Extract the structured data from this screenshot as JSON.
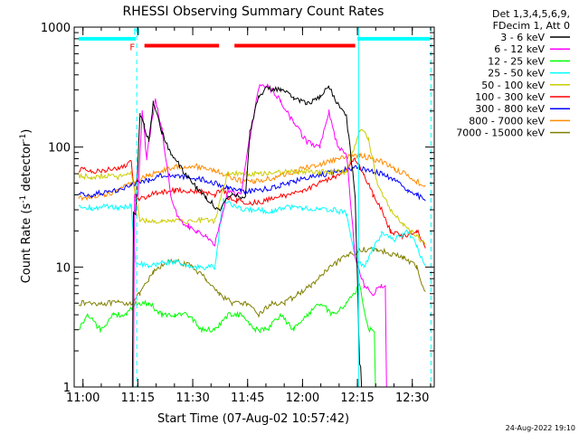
{
  "chart_data": {
    "type": "line",
    "title": "RHESSI Observing Summary Count Rates",
    "xlabel": "Start Time (07-Aug-02 10:57:42)",
    "ylabel": "Count Rate (s⁻¹ detector⁻¹)",
    "ylabel_parts": [
      "Count Rate (s",
      "-1",
      " detector",
      "-1",
      ")"
    ],
    "yscale": "log",
    "ylim": [
      1,
      1000
    ],
    "xlim": [
      10.96,
      12.6
    ],
    "xlim_labels": [
      "10:57:42",
      "12:36:00"
    ],
    "xticks": [
      {
        "v": 11.0,
        "label": "11:00"
      },
      {
        "v": 11.25,
        "label": "11:15"
      },
      {
        "v": 11.5,
        "label": "11:30"
      },
      {
        "v": 11.75,
        "label": "11:45"
      },
      {
        "v": 12.0,
        "label": "12:00"
      },
      {
        "v": 12.25,
        "label": "12:15"
      },
      {
        "v": 12.5,
        "label": "12:30"
      }
    ],
    "yticks": [
      {
        "v": 1,
        "label": "1"
      },
      {
        "v": 10,
        "label": "10"
      },
      {
        "v": 100,
        "label": "100"
      },
      {
        "v": 1000,
        "label": "1000"
      }
    ],
    "legend_position": "right",
    "legend_header": [
      "Det 1,3,4,5,6,9,",
      "FDecim 1, Att 0"
    ],
    "series": [
      {
        "name": "3 - 6 keV",
        "color": "#000000",
        "points": [
          [
            11.22,
            0
          ],
          [
            11.24,
            28
          ],
          [
            11.26,
            190
          ],
          [
            11.28,
            150
          ],
          [
            11.3,
            110
          ],
          [
            11.32,
            240
          ],
          [
            11.36,
            130
          ],
          [
            11.4,
            90
          ],
          [
            11.44,
            70
          ],
          [
            11.48,
            55
          ],
          [
            11.52,
            45
          ],
          [
            11.56,
            38
          ],
          [
            11.62,
            30
          ],
          [
            11.68,
            42
          ],
          [
            11.72,
            38
          ],
          [
            11.74,
            40
          ],
          [
            11.76,
            130
          ],
          [
            11.8,
            270
          ],
          [
            11.84,
            310
          ],
          [
            11.9,
            300
          ],
          [
            11.96,
            260
          ],
          [
            12.02,
            230
          ],
          [
            12.08,
            260
          ],
          [
            12.12,
            320
          ],
          [
            12.16,
            230
          ],
          [
            12.2,
            180
          ],
          [
            12.24,
            40
          ],
          [
            12.26,
            1.5
          ],
          [
            12.28,
            0
          ]
        ]
      },
      {
        "name": "6 - 12 keV",
        "color": "#ff00ff",
        "points": [
          [
            11.22,
            0
          ],
          [
            11.25,
            40
          ],
          [
            11.27,
            200
          ],
          [
            11.29,
            80
          ],
          [
            11.31,
            150
          ],
          [
            11.33,
            250
          ],
          [
            11.36,
            140
          ],
          [
            11.4,
            40
          ],
          [
            11.44,
            24
          ],
          [
            11.48,
            22
          ],
          [
            11.52,
            20
          ],
          [
            11.56,
            18
          ],
          [
            11.6,
            15
          ],
          [
            11.66,
            42
          ],
          [
            11.72,
            40
          ],
          [
            11.76,
            120
          ],
          [
            11.8,
            320
          ],
          [
            11.84,
            330
          ],
          [
            11.9,
            240
          ],
          [
            11.96,
            160
          ],
          [
            12.02,
            110
          ],
          [
            12.08,
            100
          ],
          [
            12.12,
            200
          ],
          [
            12.16,
            100
          ],
          [
            12.2,
            90
          ],
          [
            12.24,
            12
          ],
          [
            12.28,
            7
          ],
          [
            12.32,
            6
          ],
          [
            12.36,
            7
          ],
          [
            12.4,
            0
          ]
        ]
      },
      {
        "name": "12 - 25 keV",
        "color": "#00ff00",
        "points": [
          [
            10.98,
            3
          ],
          [
            11.02,
            4
          ],
          [
            11.08,
            3
          ],
          [
            11.14,
            4
          ],
          [
            11.2,
            4
          ],
          [
            11.24,
            5
          ],
          [
            11.3,
            5
          ],
          [
            11.36,
            4
          ],
          [
            11.42,
            4
          ],
          [
            11.48,
            4
          ],
          [
            11.54,
            3
          ],
          [
            11.6,
            3
          ],
          [
            11.66,
            4
          ],
          [
            11.72,
            4
          ],
          [
            11.78,
            3
          ],
          [
            11.84,
            3
          ],
          [
            11.9,
            4
          ],
          [
            11.96,
            3
          ],
          [
            12.02,
            4
          ],
          [
            12.08,
            5
          ],
          [
            12.14,
            4
          ],
          [
            12.2,
            5
          ],
          [
            12.26,
            7
          ],
          [
            12.3,
            3
          ],
          [
            12.36,
            0
          ]
        ]
      },
      {
        "name": "25 - 50 keV",
        "color": "#00ffff",
        "points": [
          [
            10.98,
            32
          ],
          [
            11.04,
            31
          ],
          [
            11.1,
            32
          ],
          [
            11.16,
            31
          ],
          [
            11.22,
            32
          ],
          [
            11.24,
            11
          ],
          [
            11.3,
            10
          ],
          [
            11.36,
            11
          ],
          [
            11.42,
            11
          ],
          [
            11.48,
            10
          ],
          [
            11.54,
            10
          ],
          [
            11.6,
            10
          ],
          [
            11.64,
            36
          ],
          [
            11.72,
            30
          ],
          [
            11.8,
            30
          ],
          [
            11.86,
            29
          ],
          [
            11.92,
            32
          ],
          [
            12.0,
            31
          ],
          [
            12.08,
            30
          ],
          [
            12.14,
            30
          ],
          [
            12.2,
            28
          ],
          [
            12.24,
            12
          ],
          [
            12.28,
            10
          ],
          [
            12.32,
            14
          ],
          [
            12.36,
            19
          ],
          [
            12.42,
            17
          ],
          [
            12.48,
            20
          ],
          [
            12.52,
            15
          ],
          [
            12.56,
            10
          ]
        ]
      },
      {
        "name": "50 - 100 keV",
        "color": "#cccc00",
        "points": [
          [
            10.98,
            58
          ],
          [
            11.04,
            56
          ],
          [
            11.1,
            58
          ],
          [
            11.16,
            56
          ],
          [
            11.22,
            60
          ],
          [
            11.26,
            25
          ],
          [
            11.3,
            24
          ],
          [
            11.36,
            24
          ],
          [
            11.42,
            25
          ],
          [
            11.48,
            24
          ],
          [
            11.54,
            25
          ],
          [
            11.6,
            24
          ],
          [
            11.66,
            62
          ],
          [
            11.72,
            60
          ],
          [
            11.8,
            60
          ],
          [
            11.88,
            62
          ],
          [
            11.96,
            62
          ],
          [
            12.04,
            62
          ],
          [
            12.12,
            62
          ],
          [
            12.2,
            62
          ],
          [
            12.26,
            140
          ],
          [
            12.3,
            120
          ],
          [
            12.34,
            50
          ],
          [
            12.4,
            30
          ],
          [
            12.46,
            22
          ],
          [
            12.52,
            18
          ],
          [
            12.56,
            16
          ]
        ]
      },
      {
        "name": "100 - 300 keV",
        "color": "#ff0000",
        "points": [
          [
            10.98,
            65
          ],
          [
            11.04,
            63
          ],
          [
            11.1,
            65
          ],
          [
            11.16,
            66
          ],
          [
            11.22,
            75
          ],
          [
            11.24,
            35
          ],
          [
            11.3,
            40
          ],
          [
            11.36,
            42
          ],
          [
            11.42,
            44
          ],
          [
            11.48,
            43
          ],
          [
            11.54,
            42
          ],
          [
            11.6,
            40
          ],
          [
            11.64,
            45
          ],
          [
            11.66,
            38
          ],
          [
            11.7,
            36
          ],
          [
            11.76,
            34
          ],
          [
            11.82,
            35
          ],
          [
            11.88,
            38
          ],
          [
            11.94,
            40
          ],
          [
            12.0,
            44
          ],
          [
            12.08,
            50
          ],
          [
            12.14,
            56
          ],
          [
            12.2,
            65
          ],
          [
            12.24,
            80
          ],
          [
            12.28,
            60
          ],
          [
            12.32,
            40
          ],
          [
            12.36,
            30
          ],
          [
            12.4,
            20
          ],
          [
            12.46,
            18
          ],
          [
            12.52,
            20
          ],
          [
            12.56,
            15
          ]
        ]
      },
      {
        "name": "300 - 800 keV",
        "color": "#0000ff",
        "points": [
          [
            10.98,
            40
          ],
          [
            11.04,
            40
          ],
          [
            11.1,
            42
          ],
          [
            11.16,
            44
          ],
          [
            11.22,
            48
          ],
          [
            11.3,
            53
          ],
          [
            11.36,
            58
          ],
          [
            11.42,
            58
          ],
          [
            11.48,
            56
          ],
          [
            11.54,
            54
          ],
          [
            11.6,
            50
          ],
          [
            11.66,
            46
          ],
          [
            11.72,
            43
          ],
          [
            11.78,
            43
          ],
          [
            11.84,
            45
          ],
          [
            11.9,
            48
          ],
          [
            11.96,
            52
          ],
          [
            12.02,
            55
          ],
          [
            12.08,
            58
          ],
          [
            12.14,
            62
          ],
          [
            12.2,
            65
          ],
          [
            12.26,
            68
          ],
          [
            12.3,
            64
          ],
          [
            12.36,
            60
          ],
          [
            12.42,
            52
          ],
          [
            12.48,
            44
          ],
          [
            12.52,
            40
          ],
          [
            12.56,
            36
          ]
        ]
      },
      {
        "name": "800 - 7000 keV",
        "color": "#ff8c00",
        "points": [
          [
            10.98,
            38
          ],
          [
            11.04,
            38
          ],
          [
            11.1,
            40
          ],
          [
            11.16,
            44
          ],
          [
            11.22,
            50
          ],
          [
            11.3,
            58
          ],
          [
            11.36,
            64
          ],
          [
            11.42,
            68
          ],
          [
            11.48,
            70
          ],
          [
            11.54,
            68
          ],
          [
            11.6,
            64
          ],
          [
            11.66,
            58
          ],
          [
            11.72,
            52
          ],
          [
            11.78,
            52
          ],
          [
            11.84,
            54
          ],
          [
            11.9,
            58
          ],
          [
            11.96,
            62
          ],
          [
            12.02,
            68
          ],
          [
            12.08,
            72
          ],
          [
            12.14,
            78
          ],
          [
            12.2,
            82
          ],
          [
            12.26,
            86
          ],
          [
            12.3,
            82
          ],
          [
            12.36,
            76
          ],
          [
            12.42,
            66
          ],
          [
            12.48,
            58
          ],
          [
            12.52,
            52
          ],
          [
            12.56,
            46
          ]
        ]
      },
      {
        "name": "7000 - 15000 keV",
        "color": "#808000",
        "points": [
          [
            10.98,
            5
          ],
          [
            11.04,
            5
          ],
          [
            11.1,
            5
          ],
          [
            11.16,
            5
          ],
          [
            11.22,
            5
          ],
          [
            11.26,
            6
          ],
          [
            11.32,
            9
          ],
          [
            11.38,
            11
          ],
          [
            11.44,
            11
          ],
          [
            11.5,
            10
          ],
          [
            11.56,
            8
          ],
          [
            11.62,
            6
          ],
          [
            11.68,
            5
          ],
          [
            11.74,
            5
          ],
          [
            11.8,
            4
          ],
          [
            11.86,
            5
          ],
          [
            11.92,
            5
          ],
          [
            11.98,
            6
          ],
          [
            12.04,
            7
          ],
          [
            12.1,
            9
          ],
          [
            12.16,
            11
          ],
          [
            12.22,
            13
          ],
          [
            12.28,
            14
          ],
          [
            12.34,
            14
          ],
          [
            12.4,
            13
          ],
          [
            12.46,
            12
          ],
          [
            12.52,
            10
          ],
          [
            12.56,
            6
          ]
        ]
      }
    ],
    "mode_bars": [
      {
        "kind": "saa",
        "color": "#00ffff",
        "from": 10.98,
        "to": 11.24,
        "y": 800
      },
      {
        "kind": "night",
        "color": "#ff0000",
        "from": 11.28,
        "to": 11.62,
        "y": 700
      },
      {
        "kind": "night",
        "color": "#ff0000",
        "from": 11.69,
        "to": 12.24,
        "y": 700
      },
      {
        "kind": "saa",
        "color": "#00ffff",
        "from": 12.25,
        "to": 12.58,
        "y": 800
      }
    ],
    "mode_markers": [
      {
        "text": "N",
        "color": "#00ffff",
        "x": 11.245,
        "y": 860
      },
      {
        "text": "F",
        "color": "#ff0000",
        "x": 11.225,
        "y": 640
      }
    ],
    "vlines": [
      {
        "x": 11.245,
        "color": "#00ffff",
        "dashed": true
      },
      {
        "x": 12.255,
        "color": "#00ffff",
        "dashed": false
      },
      {
        "x": 12.585,
        "color": "#00ffff",
        "dashed": true
      }
    ],
    "footer_date": "24-Aug-2022 19:10"
  }
}
